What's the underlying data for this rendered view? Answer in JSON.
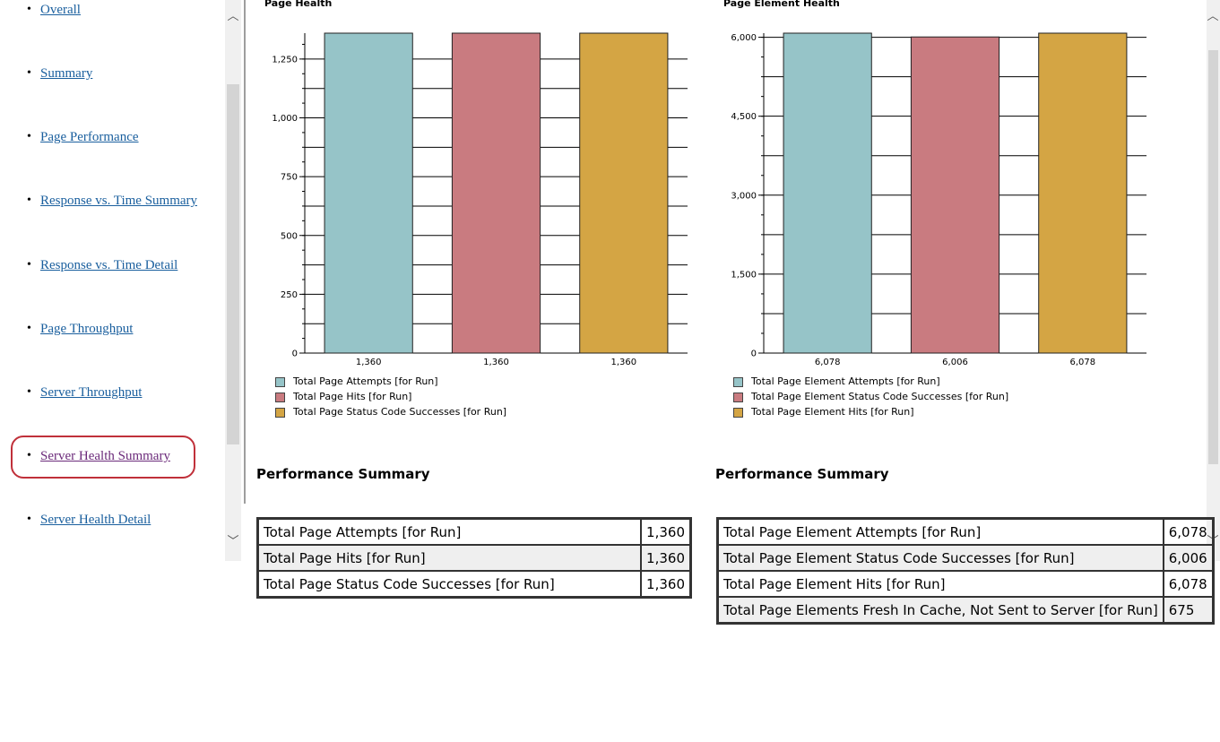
{
  "nav": {
    "items": [
      {
        "label": "Overall",
        "visited": false
      },
      {
        "label": "Summary",
        "visited": false
      },
      {
        "label": "Page Performance",
        "visited": false
      },
      {
        "label": "Response vs. Time Summary",
        "visited": false
      },
      {
        "label": "Response vs. Time Detail",
        "visited": false
      },
      {
        "label": "Page Throughput",
        "visited": false
      },
      {
        "label": "Server Throughput",
        "visited": false
      },
      {
        "label": "Server Health Summary",
        "visited": true
      },
      {
        "label": "Server Health Detail",
        "visited": false
      }
    ],
    "highlighted": "Server Health Summary"
  },
  "colors": {
    "teal": "#96c4c8",
    "rose": "#c97b80",
    "gold": "#d4a544",
    "link": "#1a5f9e",
    "visited_link": "#6b2a7a",
    "highlight_ring": "#c0303a"
  },
  "chart_data": [
    {
      "type": "bar",
      "title": "Page Health",
      "categories": [
        "1,360",
        "1,360",
        "1,360"
      ],
      "values": [
        1360,
        1360,
        1360
      ],
      "series_names": [
        "Total Page Attempts [for Run]",
        "Total Page Hits [for Run]",
        "Total Page Status Code Successes [for Run]"
      ],
      "colors": [
        "#96c4c8",
        "#c97b80",
        "#d4a544"
      ],
      "ylim": [
        0,
        1360
      ],
      "yticks": [
        0,
        250,
        500,
        750,
        1000,
        1250
      ],
      "ytick_labels": [
        "0",
        "250",
        "500",
        "750",
        "1,000",
        "1,250"
      ],
      "grid_step": 125,
      "xlabel": "",
      "ylabel": ""
    },
    {
      "type": "bar",
      "title": "Page Element Health",
      "categories": [
        "6,078",
        "6,006",
        "6,078"
      ],
      "values": [
        6078,
        6006,
        6078
      ],
      "series_names": [
        "Total Page Element Attempts [for Run]",
        "Total Page Element Status Code Successes [for Run]",
        "Total Page Element Hits [for Run]"
      ],
      "colors": [
        "#96c4c8",
        "#c97b80",
        "#d4a544"
      ],
      "ylim": [
        0,
        6078
      ],
      "yticks": [
        0,
        1500,
        3000,
        4500,
        6000
      ],
      "ytick_labels": [
        "0",
        "1,500",
        "3,000",
        "4,500",
        "6,000"
      ],
      "grid_step": 750,
      "xlabel": "",
      "ylabel": ""
    }
  ],
  "tables": {
    "left": {
      "title": "Performance Summary",
      "rows": [
        {
          "label": "Total Page Attempts [for Run]",
          "value": "1,360"
        },
        {
          "label": "Total Page Hits [for Run]",
          "value": "1,360"
        },
        {
          "label": "Total Page Status Code Successes [for Run]",
          "value": "1,360"
        }
      ]
    },
    "right": {
      "title": "Performance Summary",
      "rows": [
        {
          "label": "Total Page Element Attempts [for Run]",
          "value": "6,078"
        },
        {
          "label": "Total Page Element Status Code Successes [for Run]",
          "value": "6,006"
        },
        {
          "label": "Total Page Element Hits [for Run]",
          "value": "6,078"
        },
        {
          "label": "Total Page Elements Fresh In Cache, Not Sent to Server [for Run]",
          "value": "675"
        }
      ]
    }
  },
  "icons": {
    "scroll_up": "chevron-up-icon",
    "scroll_down": "chevron-down-icon"
  }
}
